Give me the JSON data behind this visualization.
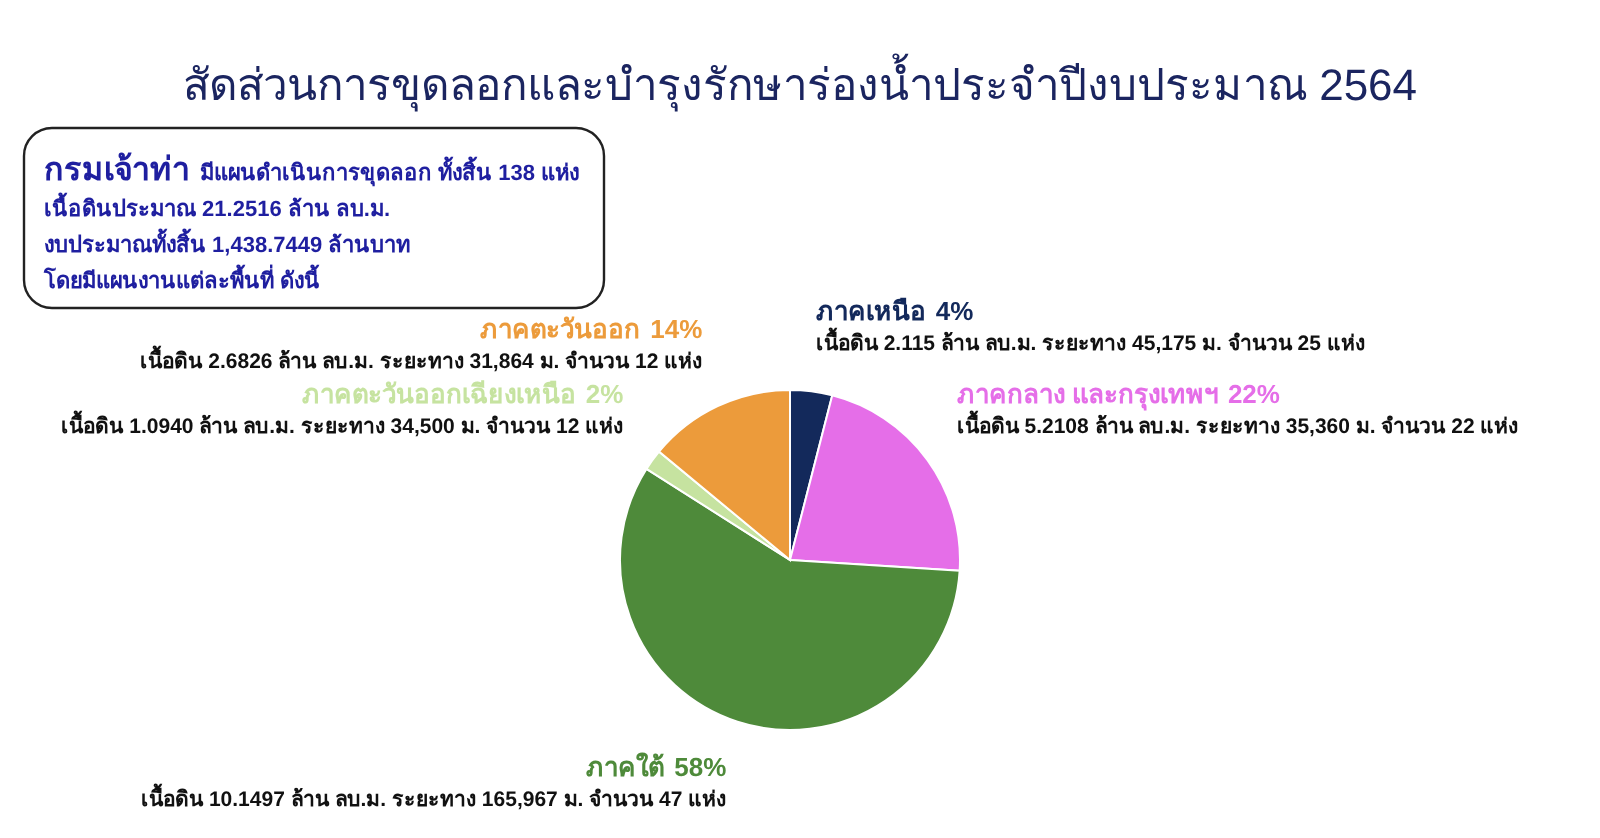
{
  "chart_data": {
    "type": "pie",
    "title": "สัดส่วนการขุดลอกและบำรุงรักษาร่องน้ำประจำปีงบประมาณ 2564",
    "categories": [
      "ภาคเหนือ",
      "ภาคกลาง และกรุงเทพฯ",
      "ภาคใต้",
      "ภาคตะวันออกเฉียงเหนือ",
      "ภาคตะวันออก"
    ],
    "values": [
      4,
      22,
      58,
      2,
      14
    ],
    "value_labels": [
      "4%",
      "22%",
      "58%",
      "2%",
      "14%"
    ],
    "colors": [
      "#13295b",
      "#e56ee8",
      "#4e8a3a",
      "#c6e3a0",
      "#ec9b3b"
    ],
    "annotations": [
      "กรมเจ้าท่า",
      "มีแผนดำเนินการขุดลอก ทั้งสิ้น 138 แห่ง\nเนื้อดินประมาณ 21.2516 ล้าน ลบ.ม.\nงบประมาณทั้งสิ้น 1,438.7449 ล้านบาท\nโดยมีแผนงานแต่ละพื้นที่ ดังนี้",
      "เนื้อดิน 2.115 ล้าน ลบ.ม. ระยะทาง 45,175 ม. จำนวน 25 แห่ง",
      "เนื้อดิน 5.2108 ล้าน ลบ.ม. ระยะทาง 35,360 ม. จำนวน 22 แห่ง",
      "เนื้อดิน 10.1497 ล้าน ลบ.ม. ระยะทาง 165,967 ม. จำนวน 47 แห่ง",
      "เนื้อดิน 1.0940 ล้าน ลบ.ม. ระยะทาง 34,500 ม. จำนวน 12 แห่ง",
      "เนื้อดิน 2.6826 ล้าน ลบ.ม. ระยะทาง 31,864 ม. จำนวน 12 แห่ง"
    ]
  }
}
